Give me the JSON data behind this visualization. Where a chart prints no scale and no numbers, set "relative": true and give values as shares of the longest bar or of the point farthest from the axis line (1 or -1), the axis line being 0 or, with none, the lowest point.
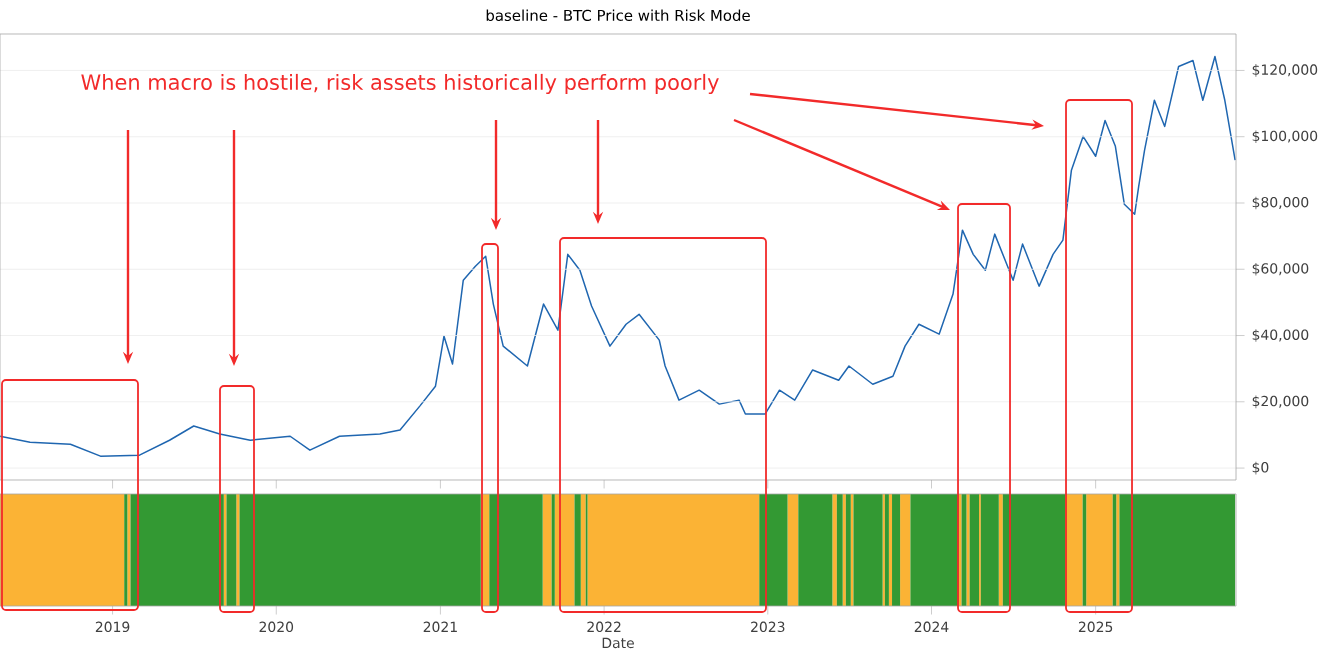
{
  "chart_data": [
    {
      "type": "line",
      "title": "baseline - BTC Price with Risk Mode",
      "annotations": [
        "When macro is hostile, risk assets historically perform poorly"
      ],
      "xlim": [
        "2018-04-25",
        "2025-11-10"
      ],
      "xticks": [
        "2019",
        "2020",
        "2021",
        "2022",
        "2023",
        "2024",
        "2025"
      ],
      "ylim": [
        -3600,
        131000
      ],
      "yticks": [
        {
          "value": 0,
          "label": "$0"
        },
        {
          "value": 20000,
          "label": "$20,000"
        },
        {
          "value": 40000,
          "label": "$40,000"
        },
        {
          "value": 60000,
          "label": "$60,000"
        },
        {
          "value": 80000,
          "label": "$80,000"
        },
        {
          "value": 100000,
          "label": "$100,000"
        },
        {
          "value": 120000,
          "label": "$120,000"
        }
      ],
      "tick_labels": "y",
      "grid": "y",
      "series": [
        {
          "color": "#1f66b0",
          "x": [
            "2018-04-25",
            "2018-07-01",
            "2018-09-29",
            "2018-12-05",
            "2019-03-02",
            "2019-05-08",
            "2019-07-01",
            "2019-08-28",
            "2019-11-04",
            "2020-02-01",
            "2020-03-16",
            "2020-05-21",
            "2020-08-19",
            "2020-10-03",
            "2020-11-16",
            "2020-12-21",
            "2021-01-09",
            "2021-01-28",
            "2021-02-21",
            "2021-03-20",
            "2021-04-12",
            "2021-04-29",
            "2021-05-21",
            "2021-07-14",
            "2021-08-19",
            "2021-09-20",
            "2021-10-12",
            "2021-11-08",
            "2021-12-04",
            "2022-01-14",
            "2022-02-19",
            "2022-03-20",
            "2022-05-04",
            "2022-05-17",
            "2022-06-17",
            "2022-08-01",
            "2022-09-15",
            "2022-10-29",
            "2022-11-12",
            "2022-12-26",
            "2023-01-27",
            "2023-03-02",
            "2023-04-11",
            "2023-06-08",
            "2023-07-01",
            "2023-08-23",
            "2023-10-07",
            "2023-11-03",
            "2023-12-04",
            "2024-01-18",
            "2024-02-18",
            "2024-03-10",
            "2024-04-03",
            "2024-04-30",
            "2024-05-21",
            "2024-07-01",
            "2024-07-22",
            "2024-08-28",
            "2024-09-28",
            "2024-10-20",
            "2024-11-08",
            "2024-12-04",
            "2025-01-01",
            "2025-01-22",
            "2025-02-14",
            "2025-03-06",
            "2025-03-29",
            "2025-04-07",
            "2025-04-20",
            "2025-05-12",
            "2025-06-04",
            "2025-07-05",
            "2025-08-06",
            "2025-08-28",
            "2025-09-24",
            "2025-10-16",
            "2025-11-08"
          ],
          "values": [
            9600,
            7800,
            7200,
            3600,
            3900,
            8400,
            12700,
            10300,
            8400,
            9600,
            5400,
            9600,
            10300,
            11500,
            18700,
            24700,
            39800,
            31400,
            56700,
            60900,
            63900,
            49500,
            36800,
            30800,
            49500,
            41600,
            64500,
            59700,
            48900,
            36800,
            43400,
            46400,
            38600,
            30800,
            20500,
            23500,
            19300,
            20500,
            16300,
            16300,
            23500,
            20500,
            29600,
            26500,
            30800,
            25300,
            27700,
            36800,
            43400,
            40400,
            52500,
            71800,
            64500,
            59700,
            70600,
            56700,
            67600,
            54900,
            64500,
            68800,
            89900,
            100100,
            94100,
            104900,
            97100,
            79600,
            76600,
            85000,
            95900,
            111000,
            103100,
            121200,
            123000,
            111000,
            124200,
            111000,
            92900
          ]
        }
      ]
    },
    {
      "type": "area",
      "xlabel": "Date",
      "relative": true,
      "xlim": [
        "2018-04-25",
        "2025-11-10"
      ],
      "xticks": [
        "2019",
        "2020",
        "2021",
        "2022",
        "2023",
        "2024",
        "2025"
      ],
      "tick_labels": "x",
      "series": [
        {
          "color": "#fbb335",
          "x": [
            "2018-04-25",
            "2019-01-27",
            "2019-01-27",
            "2019-02-03",
            "2019-02-03",
            "2019-02-10",
            "2019-02-10",
            "2019-09-06",
            "2019-09-06",
            "2019-09-12",
            "2019-09-12",
            "2019-10-04",
            "2019-10-04",
            "2019-10-11",
            "2019-10-11",
            "2021-04-01",
            "2021-04-01",
            "2021-04-20",
            "2021-04-20",
            "2021-08-17",
            "2021-08-17",
            "2021-09-06",
            "2021-09-06",
            "2021-09-13",
            "2021-09-13",
            "2021-10-27",
            "2021-10-27",
            "2021-11-10",
            "2021-11-10",
            "2021-11-21",
            "2021-11-21",
            "2021-11-25",
            "2021-11-25",
            "2022-12-13",
            "2022-12-13",
            "2023-02-14",
            "2023-02-14",
            "2023-03-10",
            "2023-03-10",
            "2023-05-25",
            "2023-05-25",
            "2023-06-04",
            "2023-06-04",
            "2023-06-17",
            "2023-06-17",
            "2023-06-24",
            "2023-06-24",
            "2023-07-05",
            "2023-07-05",
            "2023-07-11",
            "2023-07-11",
            "2023-09-14",
            "2023-09-14",
            "2023-09-19",
            "2023-09-19",
            "2023-09-28",
            "2023-09-28",
            "2023-10-05",
            "2023-10-05",
            "2023-10-23",
            "2023-10-23",
            "2023-11-15",
            "2023-11-15",
            "2024-03-02",
            "2024-03-02",
            "2024-03-08",
            "2024-03-08",
            "2024-03-19",
            "2024-03-19",
            "2024-03-26",
            "2024-03-26",
            "2024-04-16",
            "2024-04-16",
            "2024-04-20",
            "2024-04-20",
            "2024-05-30",
            "2024-05-30",
            "2024-06-08",
            "2024-06-08",
            "2024-10-25",
            "2024-10-25",
            "2024-12-03",
            "2024-12-03",
            "2024-12-11",
            "2024-12-11",
            "2025-02-08",
            "2025-02-08",
            "2025-02-16",
            "2025-02-16",
            "2025-02-23"
          ],
          "values": [
            1,
            1,
            0,
            0,
            1,
            1,
            0,
            0,
            1,
            1,
            0,
            0,
            1,
            1,
            0,
            0,
            1,
            1,
            0,
            0,
            1,
            1,
            0,
            0,
            1,
            1,
            0,
            0,
            1,
            1,
            0,
            0,
            1,
            1,
            0,
            0,
            1,
            1,
            0,
            0,
            1,
            1,
            0,
            0,
            1,
            1,
            0,
            0,
            1,
            1,
            0,
            0,
            1,
            1,
            0,
            0,
            1,
            1,
            0,
            0,
            1,
            1,
            0,
            0,
            1,
            1,
            0,
            0,
            1,
            1,
            0,
            0,
            1,
            1,
            0,
            0,
            1,
            1,
            0,
            0,
            1,
            1,
            0,
            0,
            1,
            1,
            0,
            0,
            1,
            1
          ]
        },
        {
          "color": "#339933",
          "x": [
            "2019-01-27",
            "2019-02-03",
            "2019-02-03",
            "2019-02-10",
            "2019-02-10",
            "2019-09-06",
            "2019-09-06",
            "2019-09-12",
            "2019-09-12",
            "2019-10-04",
            "2019-10-04",
            "2019-10-11",
            "2019-10-11",
            "2021-04-01",
            "2021-04-01",
            "2021-04-20",
            "2021-04-20",
            "2021-08-17",
            "2021-08-17",
            "2021-09-06",
            "2021-09-06",
            "2021-09-13",
            "2021-09-13",
            "2021-10-27",
            "2021-10-27",
            "2021-11-10",
            "2021-11-10",
            "2021-11-21",
            "2021-11-21",
            "2021-11-25",
            "2021-11-25",
            "2022-12-13",
            "2022-12-13",
            "2023-02-14",
            "2023-02-14",
            "2023-03-10",
            "2023-03-10",
            "2023-05-25",
            "2023-05-25",
            "2023-06-04",
            "2023-06-04",
            "2023-06-17",
            "2023-06-17",
            "2023-06-24",
            "2023-06-24",
            "2023-07-05",
            "2023-07-05",
            "2023-07-11",
            "2023-07-11",
            "2023-09-14",
            "2023-09-14",
            "2023-09-19",
            "2023-09-19",
            "2023-09-28",
            "2023-09-28",
            "2023-10-05",
            "2023-10-05",
            "2023-10-23",
            "2023-10-23",
            "2023-11-15",
            "2023-11-15",
            "2024-03-02",
            "2024-03-02",
            "2024-03-08",
            "2024-03-08",
            "2024-03-19",
            "2024-03-19",
            "2024-03-26",
            "2024-03-26",
            "2024-04-16",
            "2024-04-16",
            "2024-04-20",
            "2024-04-20",
            "2024-05-30",
            "2024-05-30",
            "2024-06-08",
            "2024-06-08",
            "2024-10-25",
            "2024-10-25",
            "2024-12-03",
            "2024-12-03",
            "2024-12-11",
            "2024-12-11",
            "2025-02-08",
            "2025-02-08",
            "2025-02-16",
            "2025-02-16",
            "2025-02-23",
            "2025-02-23",
            "2025-11-08"
          ],
          "values": [
            1,
            1,
            0,
            0,
            1,
            1,
            0,
            0,
            1,
            1,
            0,
            0,
            1,
            1,
            0,
            0,
            1,
            1,
            0,
            0,
            1,
            1,
            0,
            0,
            1,
            1,
            0,
            0,
            1,
            1,
            0,
            0,
            1,
            1,
            0,
            0,
            1,
            1,
            0,
            0,
            1,
            1,
            0,
            0,
            1,
            1,
            0,
            0,
            1,
            1,
            0,
            0,
            1,
            1,
            0,
            0,
            1,
            1,
            0,
            0,
            1,
            1,
            0,
            0,
            1,
            1,
            0,
            0,
            1,
            1,
            0,
            0,
            1,
            1,
            0,
            0,
            1,
            1,
            0,
            0,
            1,
            1,
            0,
            0,
            1,
            1,
            0,
            0,
            1,
            1
          ]
        }
      ]
    }
  ]
}
